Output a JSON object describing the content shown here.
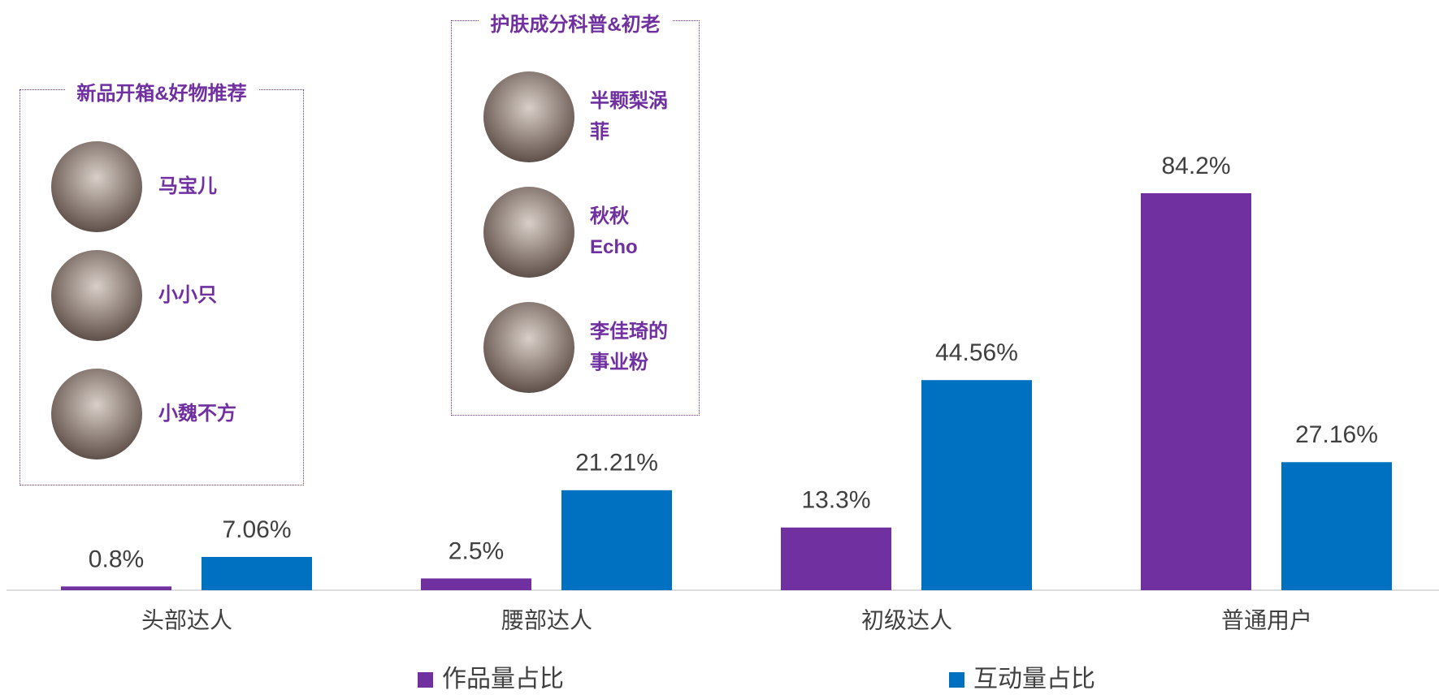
{
  "chart_data": {
    "type": "bar",
    "categories": [
      "头部达人",
      "腰部达人",
      "初级达人",
      "普通用户"
    ],
    "series": [
      {
        "name": "作品量占比",
        "color": "#7030a0",
        "values": [
          0.8,
          2.5,
          13.3,
          84.2
        ],
        "value_labels": [
          "0.8%",
          "2.5%",
          "13.3%",
          "84.2%"
        ]
      },
      {
        "name": "互动量占比",
        "color": "#0070c0",
        "values": [
          7.06,
          21.21,
          44.56,
          27.16
        ],
        "value_labels": [
          "7.06%",
          "21.21%",
          "44.56%",
          "27.16%"
        ]
      }
    ],
    "annotations": [
      {
        "title": "新品开箱&好物推荐",
        "items": [
          "马宝儿",
          "小小只",
          "小魏不方"
        ]
      },
      {
        "title": "护肤成分科普&初老",
        "items": [
          "半颗梨涡菲",
          "秋秋 Echo",
          "李佳琦的事业粉"
        ]
      }
    ]
  }
}
